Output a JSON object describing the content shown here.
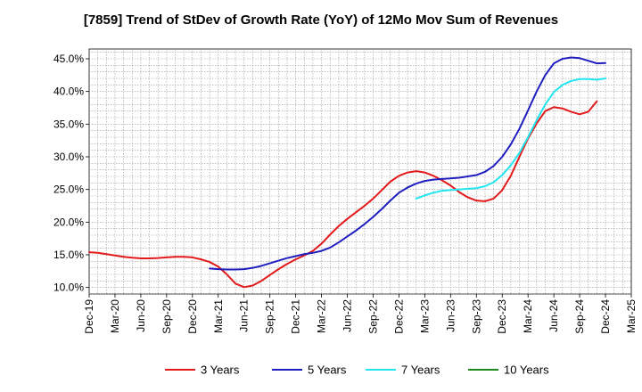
{
  "chart_data": {
    "type": "line",
    "title": "[7859]  Trend of StDev of Growth Rate (YoY) of 12Mo Mov Sum of Revenues",
    "xlabel": "",
    "ylabel": "",
    "x_ticks": [
      "Dec-19",
      "Mar-20",
      "Jun-20",
      "Sep-20",
      "Dec-20",
      "Mar-21",
      "Jun-21",
      "Sep-21",
      "Dec-21",
      "Mar-22",
      "Jun-22",
      "Sep-22",
      "Dec-22",
      "Mar-23",
      "Jun-23",
      "Sep-23",
      "Dec-23",
      "Mar-24",
      "Jun-24",
      "Sep-24",
      "Dec-24",
      "Mar-25"
    ],
    "y_ticks": [
      10.0,
      15.0,
      20.0,
      25.0,
      30.0,
      35.0,
      40.0,
      45.0
    ],
    "y_tick_labels": [
      "10.0%",
      "15.0%",
      "20.0%",
      "25.0%",
      "30.0%",
      "35.0%",
      "40.0%",
      "45.0%"
    ],
    "ylim": [
      9.0,
      46.5
    ],
    "x_range_months": [
      0,
      63
    ],
    "grid": true,
    "legend_position": "bottom",
    "series": [
      {
        "name": "3 Years",
        "color": "#e31a1c",
        "x_months": [
          0,
          1,
          2,
          3,
          4,
          5,
          6,
          7,
          8,
          9,
          10,
          11,
          12,
          13,
          14,
          15,
          16,
          17,
          18,
          19,
          20,
          21,
          22,
          23,
          24,
          25,
          26,
          27,
          28,
          29,
          30,
          31,
          32,
          33,
          34,
          35,
          36,
          37,
          38,
          39,
          40,
          41,
          42,
          43,
          44,
          45,
          46,
          47,
          48,
          49,
          50,
          51,
          52,
          53,
          54,
          55,
          56,
          57,
          58,
          59,
          60
        ],
        "values": [
          15.4,
          15.3,
          15.1,
          14.9,
          14.7,
          14.55,
          14.45,
          14.45,
          14.5,
          14.6,
          14.7,
          14.7,
          14.6,
          14.3,
          13.9,
          13.2,
          12.0,
          10.6,
          10.05,
          10.3,
          11.0,
          11.9,
          12.8,
          13.6,
          14.3,
          14.9,
          15.6,
          16.7,
          18.1,
          19.4,
          20.5,
          21.5,
          22.5,
          23.6,
          24.9,
          26.2,
          27.1,
          27.6,
          27.8,
          27.6,
          27.1,
          26.4,
          25.6,
          24.6,
          23.8,
          23.3,
          23.2,
          23.6,
          24.9,
          27.1,
          30.0,
          32.8,
          35.1,
          37.0,
          37.6,
          37.4,
          36.9,
          36.5,
          36.9,
          38.5,
          null
        ]
      },
      {
        "name": "5 Years",
        "color": "#1f1fbf",
        "x_months": [
          14,
          15,
          16,
          17,
          18,
          19,
          20,
          21,
          22,
          23,
          24,
          25,
          26,
          27,
          28,
          29,
          30,
          31,
          32,
          33,
          34,
          35,
          36,
          37,
          38,
          39,
          40,
          41,
          42,
          43,
          44,
          45,
          46,
          47,
          48,
          49,
          50,
          51,
          52,
          53,
          54,
          55,
          56,
          57,
          58,
          59,
          60
        ],
        "values": [
          12.9,
          12.8,
          12.75,
          12.75,
          12.8,
          13.0,
          13.3,
          13.7,
          14.1,
          14.5,
          14.8,
          15.1,
          15.3,
          15.6,
          16.1,
          16.9,
          17.8,
          18.7,
          19.7,
          20.8,
          22.0,
          23.3,
          24.5,
          25.3,
          25.9,
          26.3,
          26.5,
          26.6,
          26.7,
          26.8,
          27.0,
          27.2,
          27.7,
          28.6,
          30.0,
          31.9,
          34.3,
          37.1,
          40.0,
          42.5,
          44.3,
          45.0,
          45.2,
          45.1,
          44.7,
          44.3,
          44.35
        ]
      },
      {
        "name": "7 Years",
        "color": "#22e5f0",
        "x_months": [
          38,
          39,
          40,
          41,
          42,
          43,
          44,
          45,
          46,
          47,
          48,
          49,
          50,
          51,
          52,
          53,
          54,
          55,
          56,
          57,
          58,
          59,
          60
        ],
        "values": [
          23.6,
          24.1,
          24.5,
          24.8,
          24.9,
          25.0,
          25.1,
          25.2,
          25.5,
          26.1,
          27.2,
          28.7,
          30.6,
          33.0,
          35.6,
          38.0,
          39.9,
          41.0,
          41.6,
          41.9,
          41.9,
          41.8,
          42.0
        ]
      },
      {
        "name": "10 Years",
        "color": "#1a8a1a",
        "x_months": [],
        "values": []
      }
    ]
  }
}
